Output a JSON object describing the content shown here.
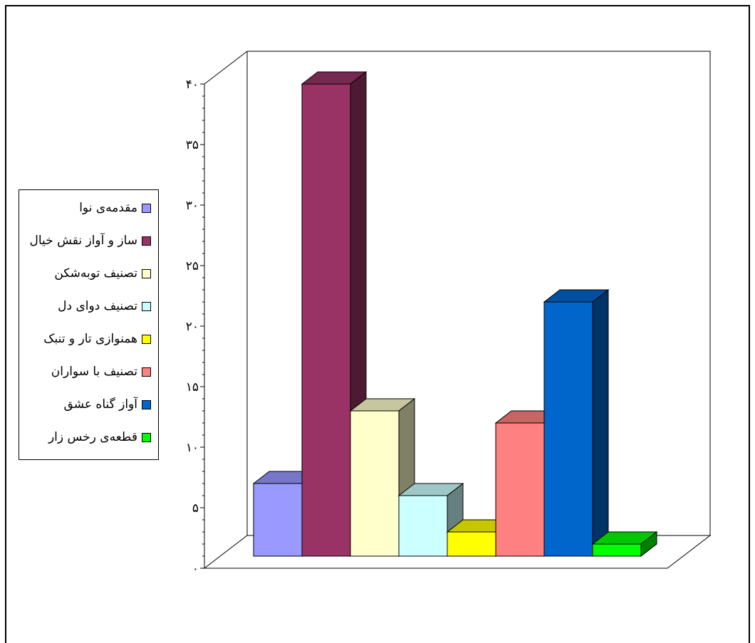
{
  "chart_data": {
    "type": "bar",
    "title": "",
    "xlabel": "",
    "ylabel": "",
    "ylim": [
      0,
      40
    ],
    "yticks": [
      {
        "value": 0,
        "label": "۰"
      },
      {
        "value": 5,
        "label": "۵"
      },
      {
        "value": 10,
        "label": "۱۰"
      },
      {
        "value": 15,
        "label": "۱۵"
      },
      {
        "value": 20,
        "label": "۲۰"
      },
      {
        "value": 25,
        "label": "۲۵"
      },
      {
        "value": 30,
        "label": "۳۰"
      },
      {
        "value": 35,
        "label": "۳۵"
      },
      {
        "value": 40,
        "label": "۴۰"
      }
    ],
    "grid": false,
    "legend_position": "left",
    "three_d": true,
    "series": [
      {
        "name": "مقدمه‌ی نوا",
        "value": 6,
        "color": "#9999ff"
      },
      {
        "name": "ساز و آواز نقش خیال",
        "value": 39,
        "color": "#993366"
      },
      {
        "name": "تصنیف توبه‌شکن",
        "value": 12,
        "color": "#ffffcc"
      },
      {
        "name": "تصنیف دوای دل",
        "value": 5,
        "color": "#ccffff"
      },
      {
        "name": "همنوازی تار و تنبک",
        "value": 2,
        "color": "#ffff00"
      },
      {
        "name": "تصنیف با سواران",
        "value": 11,
        "color": "#ff8080"
      },
      {
        "name": "آواز گناه عشق",
        "value": 21,
        "color": "#0066cc"
      },
      {
        "name": "قطعه‌ی رخس زار",
        "value": 1,
        "color": "#00ff00"
      }
    ]
  }
}
